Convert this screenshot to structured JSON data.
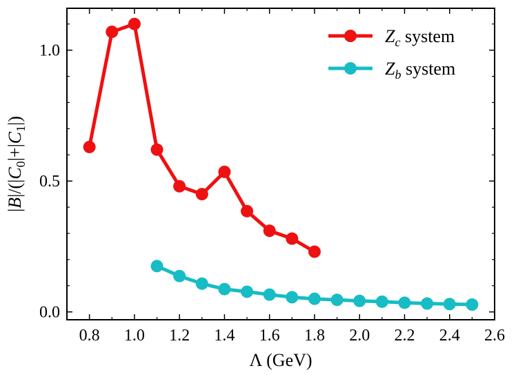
{
  "chart_data": {
    "type": "line",
    "xlabel": "Λ  (GeV)",
    "ylabel": "|B|/(|C0|+|C1|)",
    "ylabel_parts": {
      "open": "|",
      "B": "B",
      "mid": "|/(|",
      "C": "C",
      "sub0": "0",
      "plus": "|+|",
      "sub1": "1",
      "close": "|)"
    },
    "xlim": [
      0.7,
      2.6
    ],
    "ylim": [
      -0.03,
      1.16
    ],
    "x_ticks": [
      0.8,
      1.0,
      1.2,
      1.4,
      1.6,
      1.8,
      2.0,
      2.2,
      2.4,
      2.6
    ],
    "x_tick_labels": [
      "0.8",
      "1.0",
      "1.2",
      "1.4",
      "1.6",
      "1.8",
      "2.0",
      "2.2",
      "2.4",
      "2.6"
    ],
    "y_ticks": [
      0.0,
      0.5,
      1.0
    ],
    "y_tick_labels": [
      "0.0",
      "0.5",
      "1.0"
    ],
    "legend_position": "top-right",
    "series": [
      {
        "name": "Zc system",
        "legend_italic": "Z",
        "legend_sub": "c",
        "legend_rest": " system",
        "color": "#ee1111",
        "x": [
          0.8,
          0.9,
          1.0,
          1.1,
          1.2,
          1.3,
          1.4,
          1.5,
          1.6,
          1.7,
          1.8
        ],
        "y": [
          0.63,
          1.07,
          1.1,
          0.62,
          0.48,
          0.45,
          0.535,
          0.385,
          0.31,
          0.28,
          0.23
        ]
      },
      {
        "name": "Zb system",
        "legend_italic": "Z",
        "legend_sub": "b",
        "legend_rest": " system",
        "color": "#17bcc4",
        "x": [
          1.1,
          1.2,
          1.3,
          1.4,
          1.5,
          1.6,
          1.7,
          1.8,
          1.9,
          2.0,
          2.1,
          2.2,
          2.3,
          2.4,
          2.5
        ],
        "y": [
          0.175,
          0.137,
          0.108,
          0.087,
          0.077,
          0.066,
          0.056,
          0.05,
          0.046,
          0.042,
          0.039,
          0.035,
          0.032,
          0.03,
          0.028
        ]
      }
    ]
  }
}
